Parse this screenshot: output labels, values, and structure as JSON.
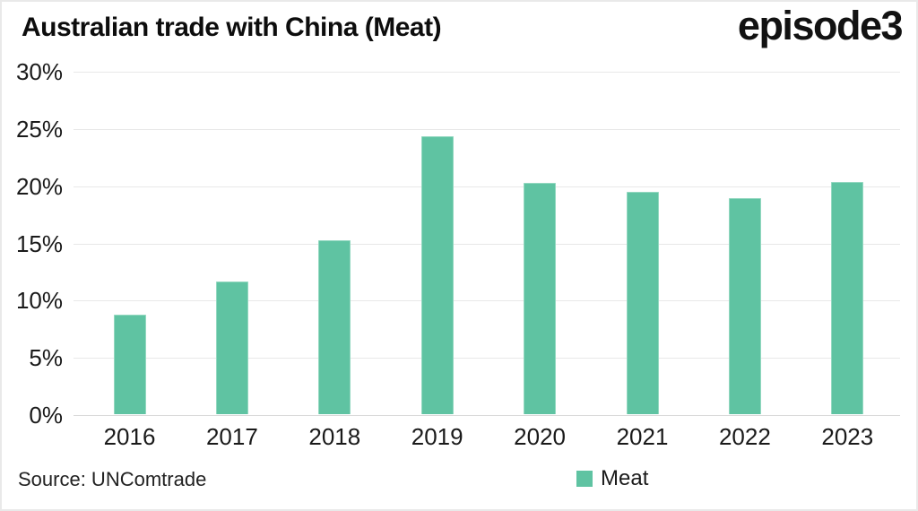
{
  "header": {
    "title": "Australian trade with China (Meat)",
    "brand": "episode3"
  },
  "footer": {
    "source": "Source: UNComtrade"
  },
  "legend": {
    "items": [
      {
        "label": "Meat",
        "color": "#5fc3a2"
      }
    ]
  },
  "chart_data": {
    "type": "bar",
    "title": "Australian trade with China (Meat)",
    "categories": [
      "2016",
      "2017",
      "2018",
      "2019",
      "2020",
      "2021",
      "2022",
      "2023"
    ],
    "series": [
      {
        "name": "Meat",
        "values": [
          8.7,
          11.6,
          15.2,
          24.3,
          20.2,
          19.4,
          18.9,
          20.3
        ]
      }
    ],
    "xlabel": "",
    "ylabel": "",
    "ylim": [
      0,
      30
    ],
    "ytick_step": 5,
    "ytick_suffix": "%",
    "grid": true,
    "legend_position": "bottom",
    "bar_color": "#5fc3a2",
    "source": "Source: UNComtrade"
  }
}
